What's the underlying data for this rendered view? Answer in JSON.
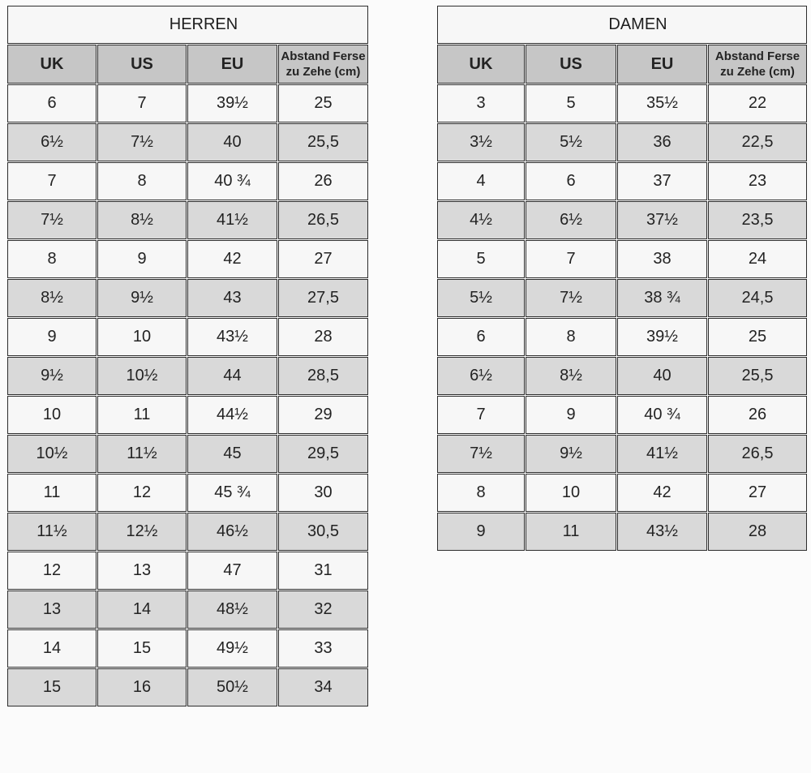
{
  "chart_data": [
    {
      "type": "table",
      "title": "HERREN",
      "columns": [
        "UK",
        "US",
        "EU",
        "Abstand Ferse zu Zehe (cm)"
      ],
      "rows": [
        [
          "6",
          "7",
          "39½",
          "25"
        ],
        [
          "6½",
          "7½",
          "40",
          "25,5"
        ],
        [
          "7",
          "8",
          "40 ¾",
          "26"
        ],
        [
          "7½",
          "8½",
          "41½",
          "26,5"
        ],
        [
          "8",
          "9",
          "42",
          "27"
        ],
        [
          "8½",
          "9½",
          "43",
          "27,5"
        ],
        [
          "9",
          "10",
          "43½",
          "28"
        ],
        [
          "9½",
          "10½",
          "44",
          "28,5"
        ],
        [
          "10",
          "11",
          "44½",
          "29"
        ],
        [
          "10½",
          "11½",
          "45",
          "29,5"
        ],
        [
          "11",
          "12",
          "45 ¾",
          "30"
        ],
        [
          "11½",
          "12½",
          "46½",
          "30,5"
        ],
        [
          "12",
          "13",
          "47",
          "31"
        ],
        [
          "13",
          "14",
          "48½",
          "32"
        ],
        [
          "14",
          "15",
          "49½",
          "33"
        ],
        [
          "15",
          "16",
          "50½",
          "34"
        ]
      ]
    },
    {
      "type": "table",
      "title": "DAMEN",
      "columns": [
        "UK",
        "US",
        "EU",
        "Abstand Ferse zu Zehe (cm)"
      ],
      "rows": [
        [
          "3",
          "5",
          "35½",
          "22"
        ],
        [
          "3½",
          "5½",
          "36",
          "22,5"
        ],
        [
          "4",
          "6",
          "37",
          "23"
        ],
        [
          "4½",
          "6½",
          "37½",
          "23,5"
        ],
        [
          "5",
          "7",
          "38",
          "24"
        ],
        [
          "5½",
          "7½",
          "38 ¾",
          "24,5"
        ],
        [
          "6",
          "8",
          "39½",
          "25"
        ],
        [
          "6½",
          "8½",
          "40",
          "25,5"
        ],
        [
          "7",
          "9",
          "40 ¾",
          "26"
        ],
        [
          "7½",
          "9½",
          "41½",
          "26,5"
        ],
        [
          "8",
          "10",
          "42",
          "27"
        ],
        [
          "9",
          "11",
          "43½",
          "28"
        ]
      ]
    }
  ],
  "colors": {
    "page_bg": "#fbfbfb",
    "border": "#2d2d2d",
    "title_bg": "#f7f7f7",
    "header_bg": "#c6c6c6",
    "row_light": "#f7f7f7",
    "row_dark": "#d9d9d9",
    "text": "#232323"
  }
}
